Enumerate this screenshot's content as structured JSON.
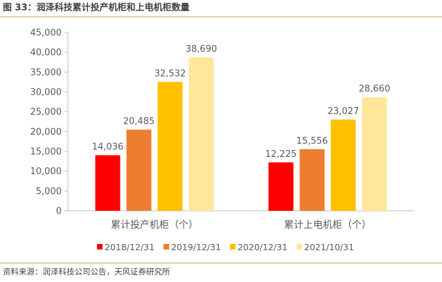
{
  "header": {
    "title": "图 33：润泽科技累计投产机柜和上电机柜数量"
  },
  "footer": {
    "source": "资料来源：润泽科技公司公告，天风证券研究所"
  },
  "chart_data": {
    "type": "bar",
    "title": "",
    "xlabel": "",
    "ylabel": "",
    "categories": [
      "累计投产机柜（个）",
      "累计上电机柜（个）"
    ],
    "ylim": [
      0,
      45000
    ],
    "yticks": [
      0,
      5000,
      10000,
      15000,
      20000,
      25000,
      30000,
      35000,
      40000,
      45000
    ],
    "ytick_labels": [
      "0",
      "5,000",
      "10,000",
      "15,000",
      "20,000",
      "25,000",
      "30,000",
      "35,000",
      "40,000",
      "45,000"
    ],
    "legend_position": "bottom",
    "grid": false,
    "series": [
      {
        "name": "2018/12/31",
        "color": "#ff0000",
        "values": [
          14036,
          12225
        ],
        "labels": [
          "14,036",
          "12,225"
        ]
      },
      {
        "name": "2019/12/31",
        "color": "#ed7d31",
        "values": [
          20485,
          15556
        ],
        "labels": [
          "20,485",
          "15,556"
        ]
      },
      {
        "name": "2020/12/31",
        "color": "#ffc000",
        "values": [
          32532,
          23027
        ],
        "labels": [
          "32,532",
          "23,027"
        ]
      },
      {
        "name": "2021/10/31",
        "color": "#ffe699",
        "values": [
          38690,
          28660
        ],
        "labels": [
          "38,690",
          "28,660"
        ]
      }
    ]
  }
}
